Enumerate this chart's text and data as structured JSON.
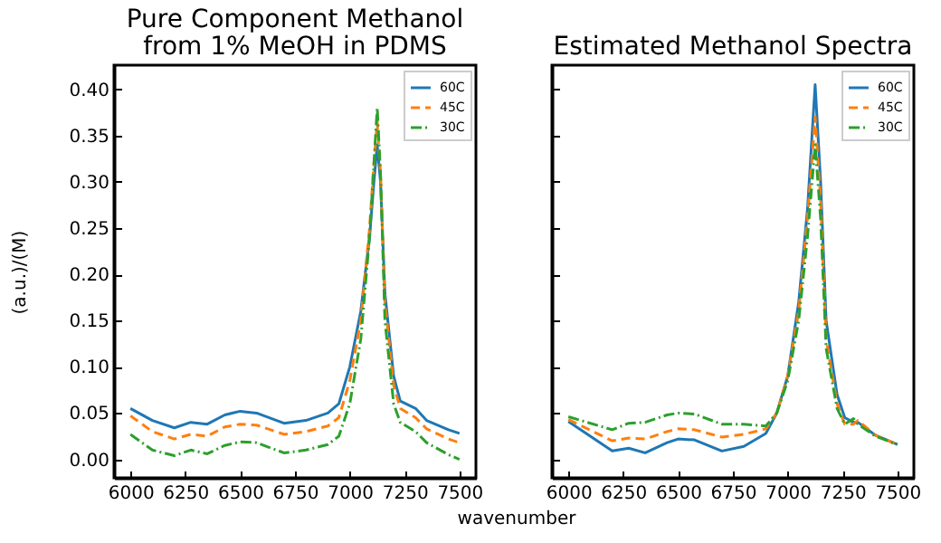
{
  "chart_data": [
    {
      "type": "line",
      "title": "Pure Component Methanol\nfrom 1% MeOH in PDMS",
      "ylabel": "(a.u.)/(M)",
      "xlabel": "wavenumber",
      "x": [
        6000,
        6100,
        6200,
        6275,
        6350,
        6430,
        6500,
        6575,
        6700,
        6800,
        6900,
        6950,
        7000,
        7050,
        7090,
        7110,
        7125,
        7140,
        7160,
        7200,
        7230,
        7300,
        7350,
        7450,
        7500
      ],
      "series": [
        {
          "name": "60C",
          "color": "#1f77b4",
          "line_style": "solid",
          "values": [
            0.055,
            0.042,
            0.034,
            0.04,
            0.038,
            0.048,
            0.052,
            0.05,
            0.039,
            0.042,
            0.05,
            0.06,
            0.1,
            0.16,
            0.24,
            0.3,
            0.34,
            0.3,
            0.18,
            0.09,
            0.063,
            0.055,
            0.042,
            0.032,
            0.028
          ]
        },
        {
          "name": "45C",
          "color": "#ff7f0e",
          "line_style": "dashed",
          "values": [
            0.047,
            0.03,
            0.022,
            0.027,
            0.025,
            0.035,
            0.038,
            0.037,
            0.027,
            0.03,
            0.036,
            0.045,
            0.085,
            0.15,
            0.25,
            0.32,
            0.365,
            0.31,
            0.17,
            0.08,
            0.055,
            0.045,
            0.033,
            0.022,
            0.018
          ]
        },
        {
          "name": "30C",
          "color": "#2ca02c",
          "line_style": "dashdot",
          "values": [
            0.027,
            0.01,
            0.004,
            0.01,
            0.006,
            0.015,
            0.019,
            0.018,
            0.007,
            0.01,
            0.016,
            0.025,
            0.06,
            0.13,
            0.24,
            0.32,
            0.38,
            0.31,
            0.15,
            0.06,
            0.04,
            0.03,
            0.018,
            0.005,
            0.0
          ]
        }
      ],
      "xlim": [
        5925,
        7575
      ],
      "xticks": [
        6000,
        6250,
        6500,
        6750,
        7000,
        7250,
        7500
      ],
      "ylim": [
        -0.02,
        0.426
      ],
      "yticks": [
        {
          "value": 0,
          "label": "0.00"
        },
        0.05,
        {
          "value": 0.1,
          "label": "0.10"
        },
        0.15,
        {
          "value": 0.2,
          "label": "0.20"
        },
        0.25,
        {
          "value": 0.3,
          "label": "0.30"
        },
        0.35,
        {
          "value": 0.4,
          "label": "0.40"
        }
      ],
      "legend": "top right",
      "grid": false
    },
    {
      "type": "line",
      "title": "Estimated Methanol Spectra",
      "x": [
        6000,
        6200,
        6275,
        6350,
        6450,
        6500,
        6575,
        6700,
        6800,
        6900,
        6950,
        7000,
        7050,
        7090,
        7125,
        7150,
        7175,
        7225,
        7260,
        7300,
        7320,
        7400,
        7500
      ],
      "series": [
        {
          "name": "60C",
          "color": "#1f77b4",
          "line_style": "solid",
          "values": [
            0.041,
            0.009,
            0.012,
            0.007,
            0.018,
            0.022,
            0.021,
            0.009,
            0.014,
            0.028,
            0.05,
            0.09,
            0.17,
            0.27,
            0.405,
            0.3,
            0.15,
            0.07,
            0.045,
            0.04,
            0.04,
            0.026,
            0.016
          ]
        },
        {
          "name": "45C",
          "color": "#ff7f0e",
          "line_style": "dashed",
          "values": [
            0.043,
            0.02,
            0.023,
            0.022,
            0.03,
            0.033,
            0.032,
            0.024,
            0.027,
            0.033,
            0.05,
            0.09,
            0.16,
            0.26,
            0.37,
            0.28,
            0.13,
            0.06,
            0.038,
            0.038,
            0.042,
            0.026,
            0.016
          ]
        },
        {
          "name": "30C",
          "color": "#2ca02c",
          "line_style": "dashdot",
          "values": [
            0.046,
            0.032,
            0.039,
            0.04,
            0.048,
            0.05,
            0.049,
            0.038,
            0.038,
            0.036,
            0.05,
            0.085,
            0.15,
            0.24,
            0.34,
            0.26,
            0.12,
            0.055,
            0.038,
            0.044,
            0.038,
            0.025,
            0.016
          ]
        }
      ],
      "xlim": [
        5925,
        7575
      ],
      "xticks": [
        6000,
        6250,
        6500,
        6750,
        7000,
        7250,
        7500
      ],
      "ylim": [
        -0.02,
        0.426
      ],
      "yticks": [
        0,
        0.05,
        0.1,
        0.15,
        0.2,
        0.25,
        0.3,
        0.35,
        0.4
      ],
      "legend": "top right",
      "grid": false,
      "tick_labels": "x"
    }
  ]
}
